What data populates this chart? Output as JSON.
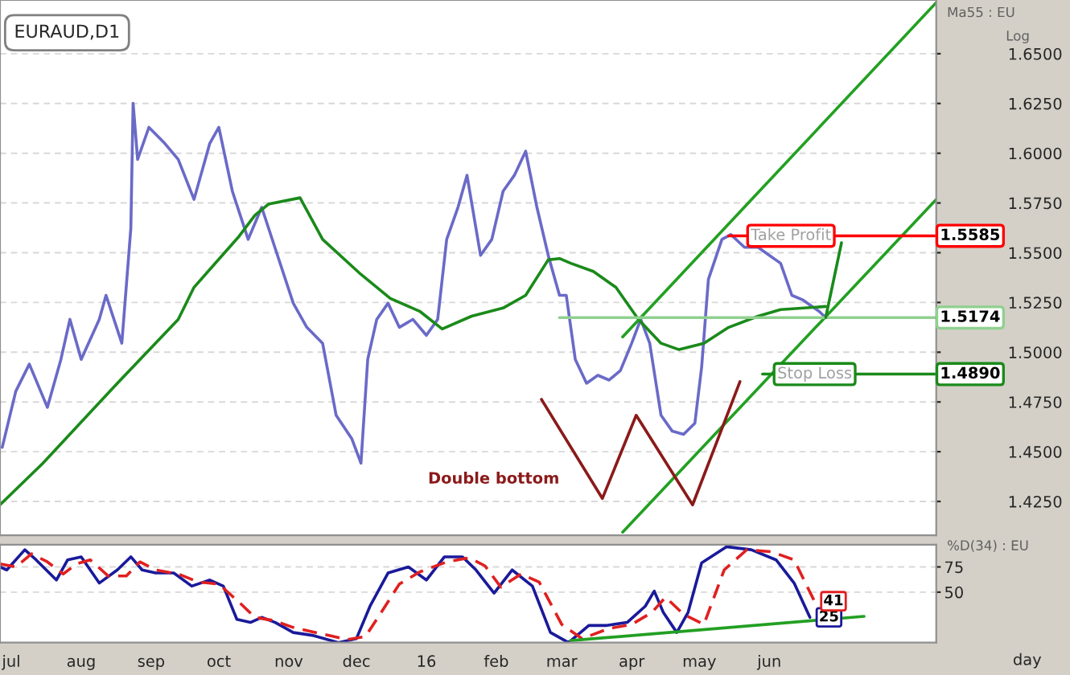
{
  "chart_data": [
    {
      "type": "line",
      "title": "EURAUD,D1",
      "annotations": [
        "Ma55 : EU",
        "Log",
        "Double bottom"
      ],
      "xlim": [
        "2015-06-26",
        "2016-08-14"
      ],
      "ylim": [
        1.408,
        1.677
      ],
      "yticks": [
        {
          "value": 1.425,
          "label": "1.4250"
        },
        {
          "value": 1.45,
          "label": "1.4500"
        },
        {
          "value": 1.475,
          "label": "1.4750"
        },
        {
          "value": 1.5,
          "label": "1.5000"
        },
        {
          "value": 1.525,
          "label": "1.5250"
        },
        {
          "value": 1.55,
          "label": "1.5500"
        },
        {
          "value": 1.575,
          "label": "1.5750"
        },
        {
          "value": 1.6,
          "label": "1.6000"
        },
        {
          "value": 1.625,
          "label": "1.6250"
        },
        {
          "value": 1.65,
          "label": "1.6500"
        }
      ],
      "tick_labels": "y",
      "grid": "y",
      "series": [
        {
          "color": "#6a6ac8",
          "x": [
            "2015-06-27",
            "2015-07-03",
            "2015-07-09",
            "2015-07-17",
            "2015-07-23",
            "2015-07-27",
            "2015-08-01",
            "2015-08-09",
            "2015-08-12",
            "2015-08-19",
            "2015-08-23",
            "2015-08-24",
            "2015-08-26",
            "2015-08-31",
            "2015-09-07",
            "2015-09-13",
            "2015-09-20",
            "2015-09-27",
            "2015-10-01",
            "2015-10-07",
            "2015-10-14",
            "2015-10-20",
            "2015-10-27",
            "2015-11-03",
            "2015-11-09",
            "2015-11-16",
            "2015-11-22",
            "2015-11-29",
            "2015-12-03",
            "2015-12-06",
            "2015-12-10",
            "2015-12-15",
            "2015-12-20",
            "2015-12-26",
            "2016-01-01",
            "2016-01-06",
            "2016-01-10",
            "2016-01-15",
            "2016-01-19",
            "2016-01-25",
            "2016-01-30",
            "2016-02-04",
            "2016-02-09",
            "2016-02-14",
            "2016-02-19",
            "2016-02-24",
            "2016-02-29",
            "2016-03-03",
            "2016-03-07",
            "2016-03-12",
            "2016-03-17",
            "2016-03-22",
            "2016-03-27",
            "2016-04-01",
            "2016-04-05",
            "2016-04-09",
            "2016-04-14",
            "2016-04-19",
            "2016-04-24",
            "2016-04-29",
            "2016-05-02",
            "2016-05-05",
            "2016-05-11",
            "2016-05-15",
            "2016-05-21",
            "2016-05-27",
            "2016-06-01",
            "2016-06-06",
            "2016-06-11",
            "2016-06-16",
            "2016-06-23",
            "2016-06-26"
          ],
          "values": [
            1.4522,
            1.4804,
            1.494,
            1.4723,
            1.4964,
            1.5165,
            1.4964,
            1.5165,
            1.5286,
            1.5045,
            1.5624,
            1.6251,
            1.5969,
            1.613,
            1.605,
            1.5969,
            1.5768,
            1.605,
            1.613,
            1.5809,
            1.5567,
            1.5728,
            1.5487,
            1.5246,
            1.5125,
            1.5045,
            1.4683,
            1.4564,
            1.4442,
            1.4964,
            1.5165,
            1.5246,
            1.5125,
            1.5165,
            1.5085,
            1.5165,
            1.5567,
            1.5728,
            1.5889,
            1.5487,
            1.5567,
            1.5809,
            1.5889,
            1.601,
            1.5728,
            1.5487,
            1.5286,
            1.5286,
            1.4964,
            1.4844,
            1.4884,
            1.486,
            1.4908,
            1.5045,
            1.5165,
            1.5045,
            1.4683,
            1.4603,
            1.4587,
            1.4643,
            1.4924,
            1.5366,
            1.5567,
            1.5591,
            1.5527,
            1.5527,
            1.5487,
            1.5447,
            1.5286,
            1.5262,
            1.5206,
            1.5174
          ]
        },
        {
          "color": "#1a8a1a",
          "x": [
            "2015-06-26",
            "2015-07-15",
            "2015-08-17",
            "2015-09-13",
            "2015-09-20",
            "2015-10-10",
            "2015-10-17",
            "2015-10-23",
            "2015-11-06",
            "2015-11-16",
            "2015-12-03",
            "2015-12-16",
            "2015-12-29",
            "2016-01-08",
            "2016-01-21",
            "2016-02-04",
            "2016-02-14",
            "2016-02-24",
            "2016-02-29",
            "2016-03-05",
            "2016-03-15",
            "2016-03-25",
            "2016-04-04",
            "2016-04-14",
            "2016-04-22",
            "2016-05-03",
            "2016-05-14",
            "2016-05-27",
            "2016-06-06",
            "2016-06-26"
          ],
          "values": [
            1.4233,
            1.4442,
            1.4844,
            1.5165,
            1.5326,
            1.5583,
            1.5688,
            1.5744,
            1.5776,
            1.5567,
            1.5391,
            1.527,
            1.5206,
            1.5117,
            1.5181,
            1.5222,
            1.5286,
            1.5464,
            1.5471,
            1.5447,
            1.5406,
            1.5326,
            1.5165,
            1.5045,
            1.5013,
            1.5045,
            1.5125,
            1.5181,
            1.5214,
            1.523
          ]
        },
        {
          "color": "#22a022",
          "x": [
            "2016-03-28",
            "2016-08-14"
          ],
          "values": [
            1.5077,
            1.6757
          ]
        },
        {
          "color": "#22a022",
          "x": [
            "2016-03-28",
            "2016-08-14"
          ],
          "values": [
            1.4096,
            1.5768
          ]
        },
        {
          "color": "#8b1a1a",
          "x": [
            "2016-02-21",
            "2016-03-19",
            "2016-04-03",
            "2016-04-28",
            "2016-05-19"
          ],
          "values": [
            1.4763,
            1.4265,
            1.4683,
            1.4233,
            1.4852
          ]
        },
        {
          "color": "#90d090",
          "x": [
            "2016-02-29",
            "2016-08-14"
          ],
          "values": [
            1.5174,
            1.5174
          ],
          "value_labels": [
            null,
            "1.5174"
          ]
        },
        {
          "name": "Take Profit",
          "color": "#ff0000",
          "x": [
            "2016-05-14",
            "2016-08-14"
          ],
          "values": [
            1.5585,
            1.5585
          ],
          "value_labels": [
            null,
            "1.5585"
          ]
        },
        {
          "name": "Stop Loss",
          "color": "#1a8a1a",
          "x": [
            "2016-05-29",
            "2016-08-14"
          ],
          "values": [
            1.489,
            1.489
          ],
          "value_labels": [
            null,
            "1.4890"
          ]
        },
        {
          "color": "#1a8a1a",
          "x": [
            "2016-06-26",
            "2016-07-03"
          ],
          "values": [
            1.5174,
            1.555
          ]
        }
      ]
    },
    {
      "type": "line",
      "xlabel": "day",
      "annotations": [
        "%D(34) : EU"
      ],
      "xlim": [
        "2015-06-26",
        "2016-08-14"
      ],
      "ylim": [
        0,
        97
      ],
      "yticks": [
        50,
        75
      ],
      "xticks": [
        {
          "value": "2015-07-01",
          "label": "jul"
        },
        {
          "value": "2015-08-01",
          "label": "aug"
        },
        {
          "value": "2015-09-01",
          "label": "sep"
        },
        {
          "value": "2015-10-01",
          "label": "oct"
        },
        {
          "value": "2015-11-01",
          "label": "nov"
        },
        {
          "value": "2015-12-01",
          "label": "dec"
        },
        {
          "value": "2016-01-01",
          "label": "16"
        },
        {
          "value": "2016-02-01",
          "label": "feb"
        },
        {
          "value": "2016-03-01",
          "label": "mar"
        },
        {
          "value": "2016-04-01",
          "label": "apr"
        },
        {
          "value": "2016-05-01",
          "label": "may"
        },
        {
          "value": "2016-06-01",
          "label": "jun"
        }
      ],
      "grid": "y",
      "series": [
        {
          "color": "#1a1a9a",
          "x": [
            "2015-06-26",
            "2015-06-29",
            "2015-07-07",
            "2015-07-12",
            "2015-07-21",
            "2015-07-26",
            "2015-08-01",
            "2015-08-09",
            "2015-08-17",
            "2015-08-23",
            "2015-08-28",
            "2015-09-03",
            "2015-09-11",
            "2015-09-19",
            "2015-09-27",
            "2015-10-03",
            "2015-10-09",
            "2015-10-15",
            "2015-10-20",
            "2015-10-26",
            "2015-11-03",
            "2015-11-12",
            "2015-11-23",
            "2015-12-01",
            "2015-12-07",
            "2015-12-15",
            "2015-12-24",
            "2016-01-01",
            "2016-01-09",
            "2016-01-17",
            "2016-01-23",
            "2016-01-31",
            "2016-02-08",
            "2016-02-17",
            "2016-02-25",
            "2016-03-04",
            "2016-03-13",
            "2016-03-21",
            "2016-03-30",
            "2016-04-07",
            "2016-04-11",
            "2016-04-15",
            "2016-04-21",
            "2016-04-26",
            "2016-05-02",
            "2016-05-13",
            "2016-05-24",
            "2016-06-04",
            "2016-06-12",
            "2016-06-19"
          ],
          "values": [
            75,
            72,
            92,
            82,
            62,
            82,
            85,
            59,
            72,
            85,
            72,
            69,
            69,
            56,
            62,
            56,
            23,
            20,
            25,
            20,
            10,
            7,
            0,
            4,
            36,
            69,
            75,
            62,
            85,
            85,
            72,
            49,
            72,
            56,
            10,
            0,
            17,
            17,
            20,
            36,
            51,
            30,
            10,
            30,
            79,
            95,
            92,
            82,
            59,
            25
          ],
          "value_labels": [
            null,
            null,
            null,
            null,
            null,
            null,
            null,
            null,
            null,
            null,
            null,
            null,
            null,
            null,
            null,
            null,
            null,
            null,
            null,
            null,
            null,
            null,
            null,
            null,
            null,
            null,
            null,
            null,
            null,
            null,
            null,
            null,
            null,
            null,
            null,
            null,
            null,
            null,
            null,
            null,
            null,
            null,
            null,
            null,
            null,
            null,
            null,
            null,
            null,
            "25"
          ]
        },
        {
          "color": "#e02020",
          "line_style": "dashed",
          "x": [
            "2015-06-26",
            "2015-07-03",
            "2015-07-10",
            "2015-07-17",
            "2015-07-24",
            "2015-07-30",
            "2015-08-05",
            "2015-08-13",
            "2015-08-21",
            "2015-08-27",
            "2015-09-03",
            "2015-09-13",
            "2015-09-22",
            "2015-10-01",
            "2015-10-10",
            "2015-10-17",
            "2015-10-25",
            "2015-11-03",
            "2015-11-15",
            "2015-11-27",
            "2015-12-05",
            "2015-12-12",
            "2015-12-20",
            "2015-12-29",
            "2016-01-10",
            "2016-01-20",
            "2016-01-27",
            "2016-02-03",
            "2016-02-12",
            "2016-02-20",
            "2016-03-01",
            "2016-03-10",
            "2016-03-22",
            "2016-04-01",
            "2016-04-10",
            "2016-04-16",
            "2016-04-24",
            "2016-05-03",
            "2016-05-12",
            "2016-05-22",
            "2016-06-02",
            "2016-06-12",
            "2016-06-21"
          ],
          "values": [
            78,
            75,
            88,
            80,
            68,
            78,
            82,
            66,
            66,
            80,
            72,
            68,
            60,
            58,
            40,
            25,
            22,
            15,
            9,
            3,
            6,
            30,
            58,
            70,
            80,
            84,
            76,
            55,
            68,
            60,
            18,
            4,
            14,
            18,
            30,
            45,
            28,
            18,
            72,
            92,
            90,
            82,
            41
          ],
          "value_labels": [
            null,
            null,
            null,
            null,
            null,
            null,
            null,
            null,
            null,
            null,
            null,
            null,
            null,
            null,
            null,
            null,
            null,
            null,
            null,
            null,
            null,
            null,
            null,
            null,
            null,
            null,
            null,
            null,
            null,
            null,
            null,
            null,
            null,
            null,
            null,
            null,
            null,
            null,
            null,
            null,
            null,
            null,
            "41"
          ]
        },
        {
          "color": "#22a022",
          "x": [
            "2016-03-05",
            "2016-07-13"
          ],
          "values": [
            2,
            26
          ]
        }
      ]
    }
  ]
}
